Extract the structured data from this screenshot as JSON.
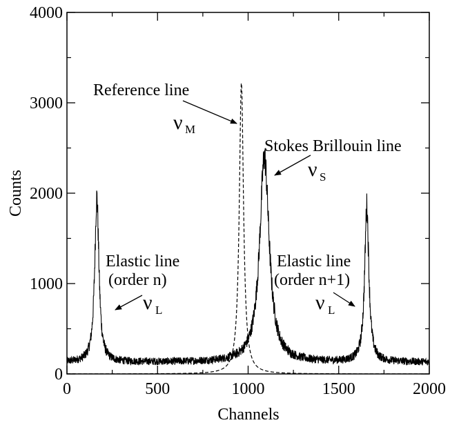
{
  "chart_data": {
    "type": "line",
    "title": "",
    "xlabel": "Channels",
    "ylabel": "Counts",
    "xlim": [
      0,
      2000
    ],
    "ylim": [
      0,
      4000
    ],
    "xticks": [
      "0",
      "500",
      "1000",
      "1500",
      "2000"
    ],
    "yticks": [
      "0",
      "1000",
      "2000",
      "3000",
      "4000"
    ],
    "grid": false,
    "legend": "none",
    "series": [
      {
        "style": "solid",
        "baseline": 130,
        "noise_amplitude": 45,
        "peaks": [
          {
            "center": 165,
            "height": 1950
          },
          {
            "center": 1090,
            "height": 2400
          },
          {
            "center": 1655,
            "height": 1850
          }
        ]
      },
      {
        "style": "dashed",
        "baseline": 0,
        "peaks": [
          {
            "center": 963,
            "height": 3230
          }
        ]
      }
    ],
    "annotations": [
      {
        "id": "reference",
        "text": "Reference line",
        "symbol": "ν",
        "subscript": "M"
      },
      {
        "id": "stokes",
        "text": "Stokes Brillouin line",
        "symbol": "ν",
        "subscript": "S"
      },
      {
        "id": "elastic_n",
        "text": "Elastic line",
        "text2": "(order n)",
        "symbol": "ν",
        "subscript": "L"
      },
      {
        "id": "elastic_n1",
        "text": "Elastic line",
        "text2": "(order n+1)",
        "symbol": "ν",
        "subscript": "L"
      }
    ]
  }
}
